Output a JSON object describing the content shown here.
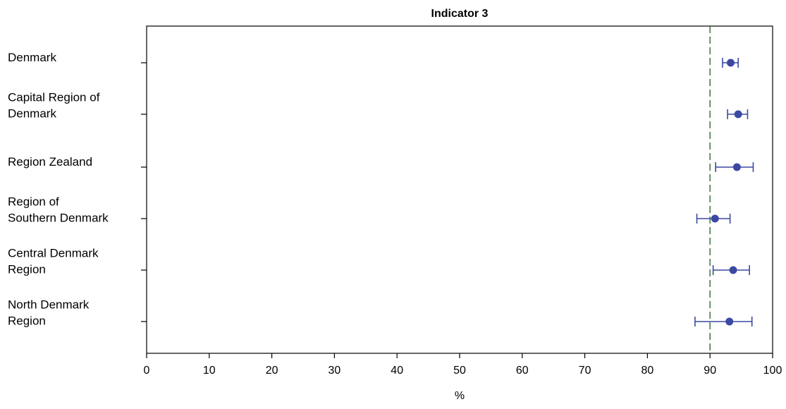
{
  "colors": {
    "marker": "#3b49a3",
    "reference_line": "#2e6b2e",
    "axis": "#000000"
  },
  "chart_data": {
    "type": "scatter",
    "title": "Indicator 3",
    "xlabel": "%",
    "ylabel": "",
    "xlim": [
      0,
      100
    ],
    "xticks": [
      0,
      10,
      20,
      30,
      40,
      50,
      60,
      70,
      80,
      90,
      100
    ],
    "reference_line": 90,
    "grid": false,
    "categories": [
      {
        "lines": [
          "Denmark"
        ],
        "value": 93.3,
        "low": 92.0,
        "high": 94.5
      },
      {
        "lines": [
          "Capital Region of",
          "Denmark"
        ],
        "value": 94.5,
        "low": 92.8,
        "high": 96.0
      },
      {
        "lines": [
          "Region Zealand"
        ],
        "value": 94.3,
        "low": 90.9,
        "high": 96.9
      },
      {
        "lines": [
          "Region of",
          "Southern Denmark"
        ],
        "value": 90.8,
        "low": 87.9,
        "high": 93.2
      },
      {
        "lines": [
          "Central Denmark",
          "Region"
        ],
        "value": 93.7,
        "low": 90.5,
        "high": 96.3
      },
      {
        "lines": [
          "North Denmark",
          "Region"
        ],
        "value": 93.1,
        "low": 87.6,
        "high": 96.7
      }
    ]
  }
}
